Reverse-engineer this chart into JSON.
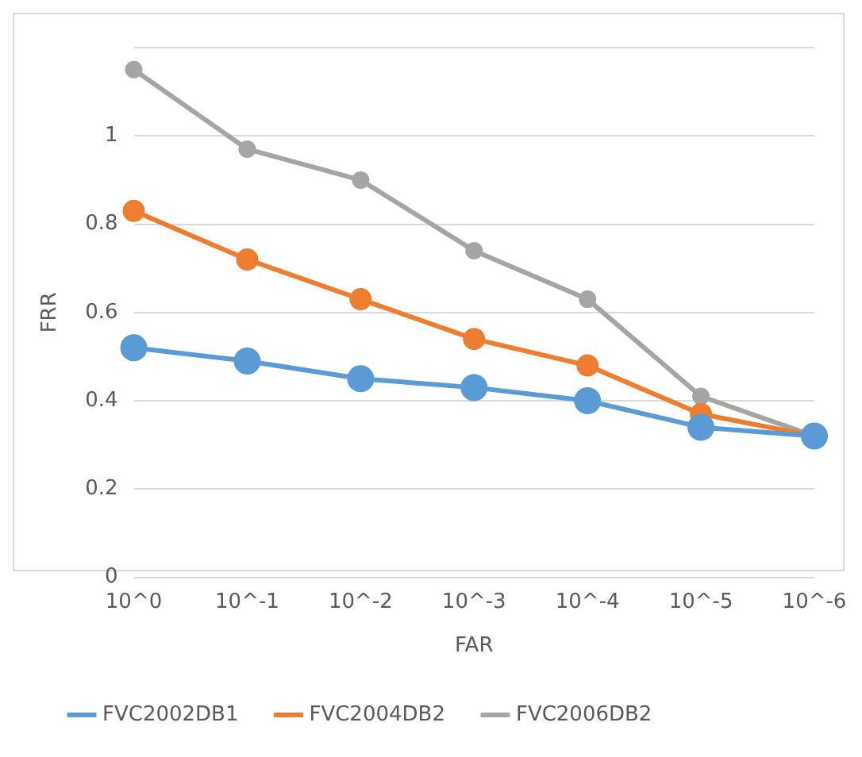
{
  "chart_data": {
    "type": "line",
    "xlabel": "FAR",
    "ylabel": "FRR",
    "categories": [
      "10^0",
      "10^-1",
      "10^-2",
      "10^-3",
      "10^-4",
      "10^-5",
      "10^-6"
    ],
    "series": [
      {
        "name": "FVC2002DB1",
        "color": "#5b9bd5",
        "values": [
          0.52,
          0.49,
          0.45,
          0.43,
          0.4,
          0.34,
          0.32
        ]
      },
      {
        "name": "FVC2004DB2",
        "color": "#ed7d31",
        "values": [
          0.83,
          0.72,
          0.63,
          0.54,
          0.48,
          0.37,
          0.32
        ]
      },
      {
        "name": "FVC2006DB2",
        "color": "#a5a5a5",
        "values": [
          1.15,
          0.97,
          0.9,
          0.74,
          0.63,
          0.41,
          0.32
        ]
      }
    ],
    "ylim": [
      0,
      1.2
    ],
    "yticks": [
      0,
      0.2,
      0.4,
      0.6,
      0.8,
      1,
      {
        "value": 1.2,
        "label": null
      }
    ],
    "grid": "y",
    "legend": "bottom",
    "marker": "circle",
    "line_style": "solid"
  }
}
